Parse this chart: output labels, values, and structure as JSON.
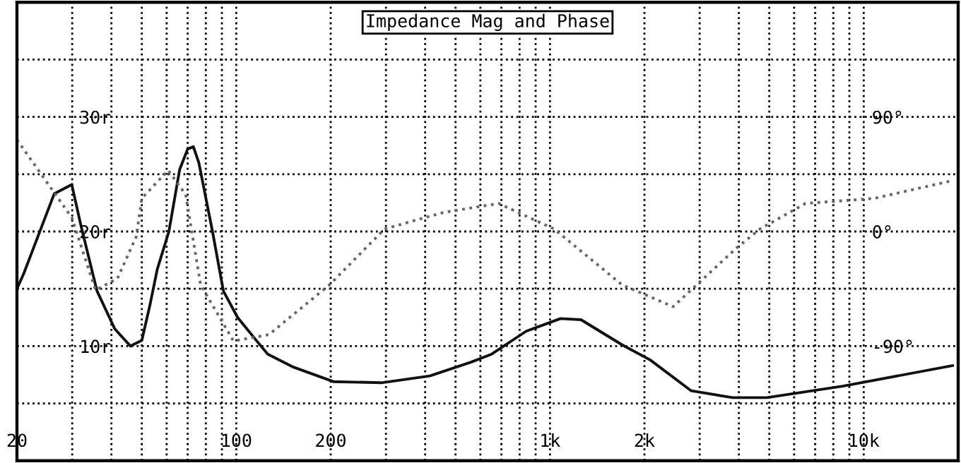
{
  "chart_data": {
    "type": "line",
    "title": "Impedance Mag and Phase",
    "log": "x",
    "grid": true,
    "legend": false,
    "xlim": [
      20,
      20000
    ],
    "xticks": [
      20,
      {
        "value": 30,
        "label": null
      },
      {
        "value": 40,
        "label": null
      },
      {
        "value": 50,
        "label": null
      },
      {
        "value": 60,
        "label": null
      },
      {
        "value": 70,
        "label": null
      },
      {
        "value": 80,
        "label": null
      },
      {
        "value": 90,
        "label": null
      },
      100,
      200,
      {
        "value": 300,
        "label": null
      },
      {
        "value": 400,
        "label": null
      },
      {
        "value": 500,
        "label": null
      },
      {
        "value": 600,
        "label": null
      },
      {
        "value": 700,
        "label": null
      },
      {
        "value": 800,
        "label": null
      },
      {
        "value": 900,
        "label": null
      },
      {
        "value": 1000,
        "label": "1k"
      },
      {
        "value": 2000,
        "label": "2k"
      },
      {
        "value": 3000,
        "label": null
      },
      {
        "value": 4000,
        "label": null
      },
      {
        "value": 5000,
        "label": null
      },
      {
        "value": 6000,
        "label": null
      },
      {
        "value": 7000,
        "label": null
      },
      {
        "value": 8000,
        "label": null
      },
      {
        "value": 9000,
        "label": null
      },
      {
        "value": 10000,
        "label": "10k"
      }
    ],
    "ylim": [
      0,
      40
    ],
    "yticks": [
      {
        "value": 5,
        "label": null
      },
      {
        "value": 10,
        "label": "10r"
      },
      {
        "value": 15,
        "label": null
      },
      {
        "value": 20,
        "label": "20r"
      },
      {
        "value": 25,
        "label": null
      },
      {
        "value": 30,
        "label": "30r"
      },
      {
        "value": 35,
        "label": null
      }
    ],
    "y2lim": [
      -180,
      180
    ],
    "y2ticks": [
      {
        "value": -90,
        "label": "-90°"
      },
      {
        "value": 0,
        "label": "0°"
      },
      {
        "value": 90,
        "label": "90°"
      }
    ],
    "series": [
      {
        "color": "#111111",
        "line_style": "solid",
        "x": [
          20,
          21,
          26.3,
          29.9,
          32,
          36,
          41,
          46,
          50,
          53,
          56,
          61,
          66,
          70,
          73,
          76,
          84,
          91,
          101,
          115,
          126,
          151,
          204,
          290,
          414,
          560,
          652,
          840,
          1080,
          1256,
          1700,
          2085,
          2820,
          3820,
          4910,
          8570,
          19200
        ],
        "values": [
          15,
          16.3,
          23.3,
          24.1,
          20.5,
          14.8,
          11.5,
          10,
          10.5,
          13.5,
          16.7,
          20,
          25.4,
          27.2,
          27.4,
          26,
          20,
          14.8,
          12.5,
          10.6,
          9.3,
          8.2,
          6.9,
          6.8,
          7.4,
          8.6,
          9.3,
          11.3,
          12.4,
          12.3,
          10.1,
          8.8,
          6.1,
          5.5,
          5.5,
          6.5,
          8.3
        ]
      },
      {
        "color": "#666666",
        "line_style": "dotted",
        "axis": "y2",
        "x": [
          20,
          29.9,
          35.6,
          41.8,
          48,
          50,
          60.7,
          69,
          77,
          98,
          127,
          198,
          297,
          458,
          686,
          1030,
          1700,
          2470,
          3930,
          4670,
          6520,
          10800,
          19200
        ],
        "values": [
          72,
          11,
          -46,
          -37,
          -4,
          26,
          48,
          29,
          -42,
          -86,
          -81,
          -42,
          2,
          15,
          22,
          2,
          -42,
          -59,
          -13,
          2,
          22,
          26,
          40
        ]
      }
    ]
  }
}
